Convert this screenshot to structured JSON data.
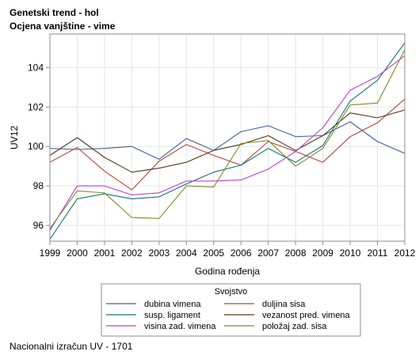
{
  "header": {
    "title": "Genetski trend - hol",
    "subtitle": "Ocjena vanjštine - vime"
  },
  "footer": {
    "note": "Nacionalni izračun UV - 1701"
  },
  "chart_data": {
    "type": "line",
    "xlabel": "Godina rođenja",
    "ylabel": "UV12",
    "x": [
      1999,
      2000,
      2001,
      2002,
      2003,
      2004,
      2005,
      2006,
      2007,
      2008,
      2009,
      2010,
      2011,
      2012
    ],
    "xlim": [
      1999,
      2012
    ],
    "ylim": [
      95.2,
      105.7
    ],
    "yticks": [
      96,
      98,
      100,
      102,
      104
    ],
    "grid": true,
    "legend": {
      "title": "Svojstvo",
      "placement": "bottom",
      "columns": 2
    },
    "series": [
      {
        "name": "dubina vimena",
        "color": "#45608f",
        "values": [
          99.9,
          99.85,
          99.9,
          100.0,
          99.35,
          100.4,
          99.8,
          100.75,
          101.05,
          100.5,
          100.55,
          101.25,
          100.25,
          99.65
        ]
      },
      {
        "name": "duljina sisa",
        "color": "#b3463a",
        "values": [
          99.2,
          99.95,
          98.75,
          97.8,
          99.25,
          100.1,
          99.55,
          99.05,
          100.25,
          99.75,
          99.2,
          100.5,
          101.2,
          102.4
        ]
      },
      {
        "name": "susp. ligament",
        "color": "#137375",
        "values": [
          95.3,
          97.35,
          97.6,
          97.35,
          97.45,
          98.1,
          98.7,
          99.05,
          99.9,
          99.2,
          100.05,
          102.3,
          103.35,
          105.25
        ]
      },
      {
        "name": "vezanost pred. vimena",
        "color": "#4d3a1c",
        "values": [
          99.55,
          100.45,
          99.45,
          98.7,
          98.9,
          99.2,
          99.8,
          100.1,
          100.55,
          99.8,
          100.55,
          101.7,
          101.45,
          101.85
        ]
      },
      {
        "name": "visina zad. vimena",
        "color": "#b242d0",
        "values": [
          95.75,
          98.0,
          98.0,
          97.55,
          97.65,
          98.25,
          98.25,
          98.3,
          98.85,
          99.75,
          100.95,
          102.85,
          103.55,
          104.6
        ]
      },
      {
        "name": "položaj zad. sisa",
        "color": "#7e8a24",
        "values": [
          95.85,
          97.75,
          97.65,
          96.4,
          96.35,
          98.0,
          97.95,
          100.15,
          100.3,
          99.0,
          99.9,
          102.1,
          102.2,
          104.9
        ]
      }
    ]
  }
}
